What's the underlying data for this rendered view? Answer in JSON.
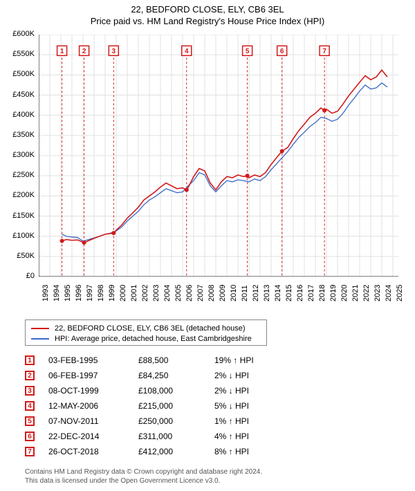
{
  "title_line1": "22, BEDFORD CLOSE, ELY, CB6 3EL",
  "title_line2": "Price paid vs. HM Land Registry's House Price Index (HPI)",
  "chart": {
    "type": "line",
    "background_color": "#ffffff",
    "grid_color": "#e0e0e0",
    "axis_color": "#000000",
    "title_fontsize": 13,
    "label_fontsize": 11,
    "x_range": [
      1993,
      2025.5
    ],
    "y_range": [
      0,
      600000
    ],
    "y_ticks": [
      0,
      50000,
      100000,
      150000,
      200000,
      250000,
      300000,
      350000,
      400000,
      450000,
      500000,
      550000,
      600000
    ],
    "y_tick_labels": [
      "£0",
      "£50K",
      "£100K",
      "£150K",
      "£200K",
      "£250K",
      "£300K",
      "£350K",
      "£400K",
      "£450K",
      "£500K",
      "£550K",
      "£600K"
    ],
    "x_ticks": [
      1993,
      1994,
      1995,
      1996,
      1997,
      1998,
      1999,
      2000,
      2001,
      2002,
      2003,
      2004,
      2005,
      2006,
      2007,
      2008,
      2009,
      2010,
      2011,
      2012,
      2013,
      2014,
      2015,
      2016,
      2017,
      2018,
      2019,
      2020,
      2021,
      2022,
      2023,
      2024,
      2025
    ],
    "x_tick_labels": [
      "1993",
      "1994",
      "1995",
      "1996",
      "1997",
      "1998",
      "1999",
      "2000",
      "2001",
      "2002",
      "2003",
      "2004",
      "2005",
      "2006",
      "2007",
      "2008",
      "2009",
      "2010",
      "2011",
      "2012",
      "2013",
      "2014",
      "2015",
      "2016",
      "2017",
      "2018",
      "2019",
      "2020",
      "2021",
      "2022",
      "2023",
      "2024",
      "2025"
    ],
    "series": [
      {
        "name": "22, BEDFORD CLOSE, ELY, CB6 3EL (detached house)",
        "color": "#d21919",
        "line_width": 1.6,
        "points": [
          [
            1995.1,
            88500
          ],
          [
            1995.5,
            92000
          ],
          [
            1996,
            90000
          ],
          [
            1996.5,
            91000
          ],
          [
            1997.1,
            84250
          ],
          [
            1997.5,
            89000
          ],
          [
            1998,
            95000
          ],
          [
            1998.5,
            100000
          ],
          [
            1999,
            105000
          ],
          [
            1999.5,
            107000
          ],
          [
            1999.8,
            108000
          ],
          [
            2000,
            115000
          ],
          [
            2000.5,
            128000
          ],
          [
            2001,
            145000
          ],
          [
            2001.5,
            158000
          ],
          [
            2002,
            172000
          ],
          [
            2002.5,
            190000
          ],
          [
            2003,
            200000
          ],
          [
            2003.5,
            210000
          ],
          [
            2004,
            222000
          ],
          [
            2004.5,
            232000
          ],
          [
            2005,
            225000
          ],
          [
            2005.5,
            218000
          ],
          [
            2006,
            220000
          ],
          [
            2006.4,
            215000
          ],
          [
            2007,
            248000
          ],
          [
            2007.5,
            268000
          ],
          [
            2008,
            262000
          ],
          [
            2008.5,
            232000
          ],
          [
            2009,
            215000
          ],
          [
            2009.5,
            235000
          ],
          [
            2010,
            248000
          ],
          [
            2010.5,
            245000
          ],
          [
            2011,
            252000
          ],
          [
            2011.5,
            248000
          ],
          [
            2011.85,
            250000
          ],
          [
            2012,
            245000
          ],
          [
            2012.5,
            252000
          ],
          [
            2013,
            248000
          ],
          [
            2013.5,
            258000
          ],
          [
            2014,
            278000
          ],
          [
            2014.5,
            295000
          ],
          [
            2014.98,
            311000
          ],
          [
            2015.5,
            320000
          ],
          [
            2016,
            342000
          ],
          [
            2016.5,
            362000
          ],
          [
            2017,
            378000
          ],
          [
            2017.5,
            395000
          ],
          [
            2018,
            405000
          ],
          [
            2018.5,
            418000
          ],
          [
            2018.82,
            412000
          ],
          [
            2019,
            415000
          ],
          [
            2019.5,
            405000
          ],
          [
            2020,
            410000
          ],
          [
            2020.5,
            428000
          ],
          [
            2021,
            448000
          ],
          [
            2021.5,
            465000
          ],
          [
            2022,
            482000
          ],
          [
            2022.5,
            498000
          ],
          [
            2023,
            488000
          ],
          [
            2023.5,
            495000
          ],
          [
            2024,
            512000
          ],
          [
            2024.5,
            495000
          ]
        ]
      },
      {
        "name": "HPI: Average price, detached house, East Cambridgeshire",
        "color": "#3a68c8",
        "line_width": 1.3,
        "points": [
          [
            1995.1,
            105000
          ],
          [
            1995.5,
            100000
          ],
          [
            1996,
            98000
          ],
          [
            1996.5,
            97000
          ],
          [
            1997,
            88000
          ],
          [
            1997.5,
            92000
          ],
          [
            1998,
            96000
          ],
          [
            1998.5,
            100000
          ],
          [
            1999,
            105000
          ],
          [
            1999.5,
            108000
          ],
          [
            2000,
            113000
          ],
          [
            2000.5,
            123000
          ],
          [
            2001,
            138000
          ],
          [
            2001.5,
            150000
          ],
          [
            2002,
            162000
          ],
          [
            2002.5,
            178000
          ],
          [
            2003,
            190000
          ],
          [
            2003.5,
            198000
          ],
          [
            2004,
            208000
          ],
          [
            2004.5,
            218000
          ],
          [
            2005,
            213000
          ],
          [
            2005.5,
            208000
          ],
          [
            2006,
            210000
          ],
          [
            2006.5,
            225000
          ],
          [
            2007,
            238000
          ],
          [
            2007.5,
            258000
          ],
          [
            2008,
            252000
          ],
          [
            2008.5,
            225000
          ],
          [
            2009,
            210000
          ],
          [
            2009.5,
            225000
          ],
          [
            2010,
            238000
          ],
          [
            2010.5,
            235000
          ],
          [
            2011,
            240000
          ],
          [
            2011.5,
            238000
          ],
          [
            2012,
            235000
          ],
          [
            2012.5,
            242000
          ],
          [
            2013,
            238000
          ],
          [
            2013.5,
            248000
          ],
          [
            2014,
            265000
          ],
          [
            2014.5,
            280000
          ],
          [
            2015,
            295000
          ],
          [
            2015.5,
            310000
          ],
          [
            2016,
            328000
          ],
          [
            2016.5,
            345000
          ],
          [
            2017,
            358000
          ],
          [
            2017.5,
            372000
          ],
          [
            2018,
            382000
          ],
          [
            2018.5,
            395000
          ],
          [
            2019,
            392000
          ],
          [
            2019.5,
            385000
          ],
          [
            2020,
            390000
          ],
          [
            2020.5,
            405000
          ],
          [
            2021,
            425000
          ],
          [
            2021.5,
            442000
          ],
          [
            2022,
            460000
          ],
          [
            2022.5,
            475000
          ],
          [
            2023,
            465000
          ],
          [
            2023.5,
            468000
          ],
          [
            2024,
            480000
          ],
          [
            2024.5,
            470000
          ]
        ]
      }
    ],
    "markers": [
      {
        "n": "1",
        "year": 1995.1,
        "color": "#d21919"
      },
      {
        "n": "2",
        "year": 1997.1,
        "color": "#d21919"
      },
      {
        "n": "3",
        "year": 1999.77,
        "color": "#d21919"
      },
      {
        "n": "4",
        "year": 2006.36,
        "color": "#d21919"
      },
      {
        "n": "5",
        "year": 2011.85,
        "color": "#d21919"
      },
      {
        "n": "6",
        "year": 2014.98,
        "color": "#d21919"
      },
      {
        "n": "7",
        "year": 2018.82,
        "color": "#d21919"
      }
    ],
    "marker_y": 560000,
    "marker_box_size": 14,
    "marker_fontsize": 10,
    "marker_line_color": "#d21919",
    "marker_line_dash": "3,3",
    "sale_dots": [
      {
        "year": 1995.1,
        "price": 88500
      },
      {
        "year": 1997.1,
        "price": 84250
      },
      {
        "year": 1999.77,
        "price": 108000
      },
      {
        "year": 2006.36,
        "price": 215000
      },
      {
        "year": 2011.85,
        "price": 250000
      },
      {
        "year": 2014.98,
        "price": 311000
      },
      {
        "year": 2018.82,
        "price": 412000
      }
    ],
    "sale_dot_color": "#d21919",
    "sale_dot_radius": 3
  },
  "legend": {
    "items": [
      {
        "color": "#d21919",
        "label": "22, BEDFORD CLOSE, ELY, CB6 3EL (detached house)"
      },
      {
        "color": "#3a68c8",
        "label": "HPI: Average price, detached house, East Cambridgeshire"
      }
    ]
  },
  "sales": [
    {
      "n": "1",
      "date": "03-FEB-1995",
      "price": "£88,500",
      "pct": "19% ↑ HPI",
      "color": "#d21919"
    },
    {
      "n": "2",
      "date": "06-FEB-1997",
      "price": "£84,250",
      "pct": "2% ↓ HPI",
      "color": "#d21919"
    },
    {
      "n": "3",
      "date": "08-OCT-1999",
      "price": "£108,000",
      "pct": "2% ↓ HPI",
      "color": "#d21919"
    },
    {
      "n": "4",
      "date": "12-MAY-2006",
      "price": "£215,000",
      "pct": "5% ↓ HPI",
      "color": "#d21919"
    },
    {
      "n": "5",
      "date": "07-NOV-2011",
      "price": "£250,000",
      "pct": "1% ↑ HPI",
      "color": "#d21919"
    },
    {
      "n": "6",
      "date": "22-DEC-2014",
      "price": "£311,000",
      "pct": "4% ↑ HPI",
      "color": "#d21919"
    },
    {
      "n": "7",
      "date": "26-OCT-2018",
      "price": "£412,000",
      "pct": "8% ↑ HPI",
      "color": "#d21919"
    }
  ],
  "footer_line1": "Contains HM Land Registry data © Crown copyright and database right 2024.",
  "footer_line2": "This data is licensed under the Open Government Licence v3.0."
}
